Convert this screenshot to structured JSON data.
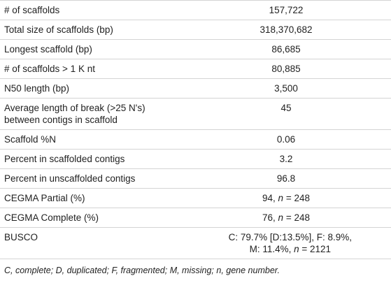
{
  "rows": [
    {
      "label": "# of scaffolds",
      "value": "157,722"
    },
    {
      "label": "Total size of scaffolds (bp)",
      "value": "318,370,682"
    },
    {
      "label": "Longest scaffold (bp)",
      "value": "86,685"
    },
    {
      "label": "# of scaffolds > 1 K nt",
      "value": "80,885"
    },
    {
      "label": "N50 length (bp)",
      "value": "3,500"
    },
    {
      "label": "Average length of break (>25 N's) between contigs in scaffold",
      "value": "45"
    },
    {
      "label": "Scaffold %N",
      "value": "0.06"
    },
    {
      "label": "Percent in scaffolded contigs",
      "value": "3.2"
    },
    {
      "label": "Percent in unscaffolded contigs",
      "value": "96.8"
    },
    {
      "label": "CEGMA Partial (%)",
      "value_pre": "94, ",
      "value_var": "n",
      "value_post": " = 248"
    },
    {
      "label": "CEGMA Complete (%)",
      "value_pre": "76, ",
      "value_var": "n",
      "value_post": " = 248"
    },
    {
      "label": "BUSCO",
      "value_line1": "C: 79.7% [D:13.5%], F: 8.9%,",
      "value_line2_pre": "M: 11.4%, ",
      "value_line2_var": "n",
      "value_line2_post": " = 2121"
    }
  ],
  "footnote": "C, complete; D, duplicated; F, fragmented; M, missing; n, gene number."
}
